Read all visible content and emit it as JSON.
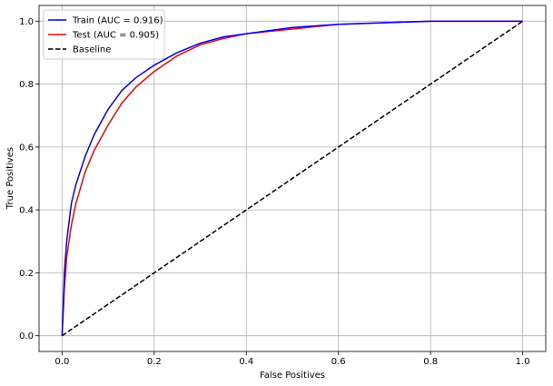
{
  "chart_data": {
    "type": "line",
    "xlabel": "False Positives",
    "ylabel": "True Positives",
    "series": [
      {
        "name": "Train (AUC = 0.916)",
        "color": "#0000ff",
        "style": "solid",
        "x": [
          0,
          0.005,
          0.01,
          0.02,
          0.03,
          0.05,
          0.07,
          0.1,
          0.13,
          0.16,
          0.2,
          0.25,
          0.3,
          0.35,
          0.4,
          0.5,
          0.6,
          0.7,
          0.8,
          0.9,
          1
        ],
        "values": [
          0,
          0.2,
          0.3,
          0.42,
          0.48,
          0.57,
          0.64,
          0.72,
          0.78,
          0.82,
          0.86,
          0.9,
          0.93,
          0.95,
          0.96,
          0.98,
          0.99,
          0.995,
          1,
          1,
          1
        ]
      },
      {
        "name": "Test (AUC = 0.905)",
        "color": "#ff0000",
        "style": "solid",
        "x": [
          0,
          0.005,
          0.01,
          0.02,
          0.03,
          0.05,
          0.07,
          0.1,
          0.13,
          0.16,
          0.2,
          0.25,
          0.3,
          0.35,
          0.4,
          0.5,
          0.6,
          0.7,
          0.8,
          0.9,
          1
        ],
        "values": [
          0,
          0.15,
          0.25,
          0.35,
          0.42,
          0.52,
          0.59,
          0.67,
          0.74,
          0.79,
          0.84,
          0.89,
          0.925,
          0.945,
          0.96,
          0.975,
          0.99,
          0.995,
          1,
          1,
          1
        ]
      },
      {
        "name": "Baseline",
        "color": "#000000",
        "style": "dashed",
        "x": [
          0,
          1
        ],
        "values": [
          0,
          1
        ]
      }
    ],
    "xlim": [
      -0.05,
      1.05
    ],
    "ylim": [
      -0.05,
      1.05
    ],
    "xticks": [
      {
        "value": 0,
        "label": "0.0"
      },
      0.2,
      0.4,
      0.6,
      0.8,
      {
        "value": 1,
        "label": "1.0"
      }
    ],
    "yticks": [
      {
        "value": 0,
        "label": "0.0"
      },
      0.2,
      0.4,
      0.6,
      0.8,
      {
        "value": 1,
        "label": "1.0"
      }
    ],
    "grid": true,
    "legend": "upper-left"
  }
}
